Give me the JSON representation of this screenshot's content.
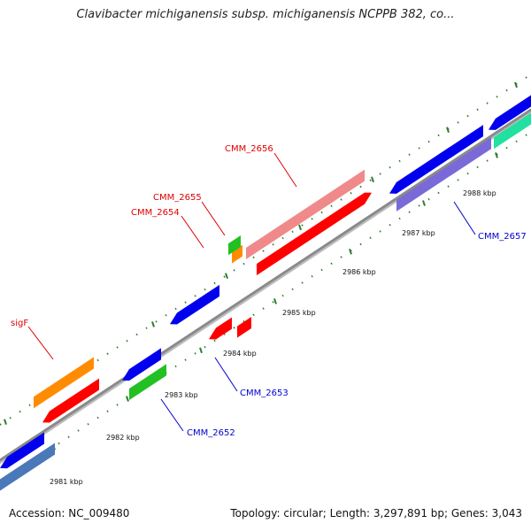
{
  "title": "Clavibacter michiganensis subsp. michiganensis NCPPB 382, co...",
  "footer": {
    "accession": "Accession: NC_009480",
    "summary": "Topology: circular; Length: 3,297,891 bp; Genes: 3,043"
  },
  "colors": {
    "backbone": "#8a8a8a",
    "label_forward": "#e00000",
    "label_reverse": "#0000cc",
    "tick": "#2e7d2e"
  },
  "ticks": [
    {
      "label": "2981 kbp"
    },
    {
      "label": "2982 kbp"
    },
    {
      "label": "2983 kbp"
    },
    {
      "label": "2984 kbp"
    },
    {
      "label": "2985 kbp"
    },
    {
      "label": "2986 kbp"
    },
    {
      "label": "2987 kbp"
    },
    {
      "label": "2988 kbp"
    }
  ],
  "gene_labels": [
    {
      "name": "sigF",
      "strand": "forward"
    },
    {
      "name": "CMM_2654",
      "strand": "forward"
    },
    {
      "name": "CMM_2655",
      "strand": "forward"
    },
    {
      "name": "CMM_2656",
      "strand": "forward"
    },
    {
      "name": "CMM_2652",
      "strand": "reverse"
    },
    {
      "name": "CMM_2653",
      "strand": "reverse"
    },
    {
      "name": "CMM_2657",
      "strand": "reverse"
    }
  ],
  "features": [
    {
      "track": "forward-cds",
      "color": "#ff0000"
    },
    {
      "track": "forward-rna",
      "color": "#ff8c00"
    },
    {
      "track": "forward-cds",
      "color": "#ff0000"
    },
    {
      "track": "forward-cds",
      "color": "#ff0000"
    },
    {
      "track": "forward-rna",
      "color": "#ff8c00"
    },
    {
      "track": "forward-other",
      "color": "#22c022"
    },
    {
      "track": "forward-cds",
      "color": "#ff0000"
    },
    {
      "track": "forward-misc",
      "color": "#f08a8a"
    },
    {
      "track": "reverse-cds",
      "color": "#0000ee"
    },
    {
      "track": "reverse-misc",
      "color": "#4a78b8"
    },
    {
      "track": "reverse-cds",
      "color": "#0000ee"
    },
    {
      "track": "reverse-other",
      "color": "#22c022"
    },
    {
      "track": "reverse-cds",
      "color": "#0000ee"
    },
    {
      "track": "reverse-cds",
      "color": "#0000ee"
    },
    {
      "track": "reverse-misc",
      "color": "#7a6ad8"
    },
    {
      "track": "reverse-cds",
      "color": "#0000ee"
    },
    {
      "track": "reverse-other",
      "color": "#22e0a0"
    }
  ]
}
